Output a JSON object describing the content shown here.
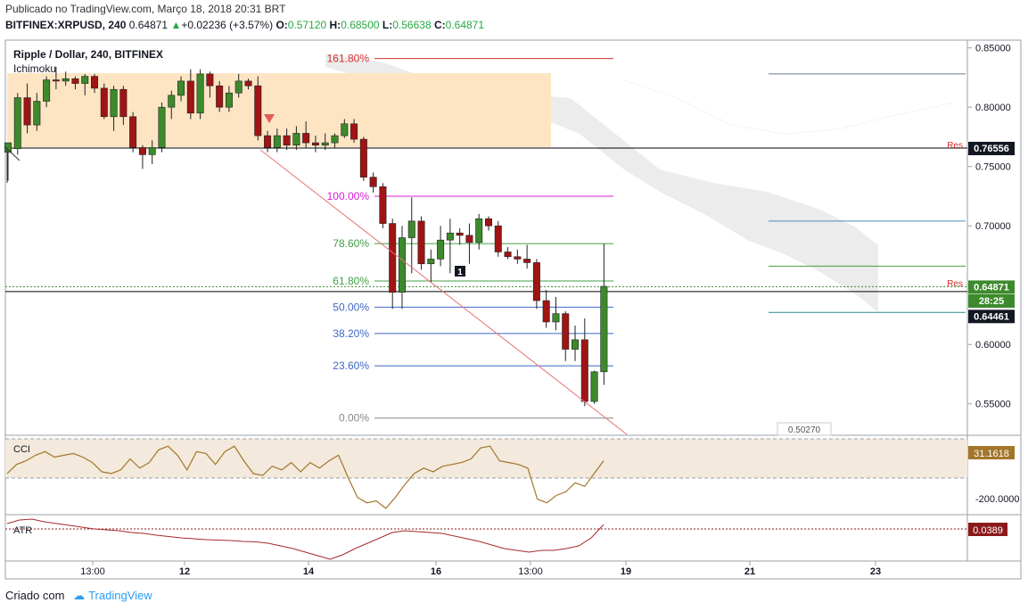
{
  "header": {
    "published": "Publicado no TradingView.com, Março 18, 2018 20:31 BRT",
    "symbol": "BITFINEX:XRPUSD, 240",
    "last": "0.64871",
    "change": "+0.02236 (+3.57%)",
    "o_label": "O:",
    "o": "0.57120",
    "h_label": "H:",
    "h": "0.68500",
    "l_label": "L:",
    "l": "0.56638",
    "c_label": "C:",
    "c": "0.64871"
  },
  "footer": {
    "created": "Criado com",
    "brand": "TradingView"
  },
  "colors": {
    "up": "#3d8a2c",
    "down": "#a01414",
    "zone": "#fde5c4",
    "cloud": "#e4e4e4"
  },
  "chart_data": {
    "type": "candlestick",
    "title": "Ripple / Dollar, 240, BITFINEX",
    "indicator_label": "Ichimoku",
    "y_axis": {
      "ticks": [
        "0.85000",
        "0.80000",
        "0.75000",
        "0.70000",
        "0.65000",
        "0.60000",
        "0.55000"
      ],
      "range": [
        0.525,
        0.855
      ]
    },
    "x_axis": {
      "ticks": [
        "13:00",
        "12",
        "14",
        "16",
        "13:00",
        "19",
        "21",
        "23"
      ]
    },
    "price_tags": [
      {
        "label": "0.76556",
        "value": 0.76556,
        "style": "dark"
      },
      {
        "label": "0.64871",
        "value": 0.64871,
        "style": "green"
      },
      {
        "label": "28:25",
        "value": 0.637,
        "style": "green"
      },
      {
        "label": "0.64461",
        "value": 0.624,
        "style": "dark"
      }
    ],
    "horizontal_lines": [
      {
        "value": 0.76556,
        "color": "#000000"
      },
      {
        "value": 0.64461,
        "color": "#000000"
      }
    ],
    "res_labels": [
      {
        "text": "Res",
        "value": 0.7669
      },
      {
        "text": "Res",
        "value": 0.6505
      }
    ],
    "fib_levels": [
      {
        "label": "161.80%",
        "value": 0.841,
        "color": "#d32f2f"
      },
      {
        "label": "100.00%",
        "value": 0.725,
        "color": "#d81fd8"
      },
      {
        "label": "78.60%",
        "value": 0.685,
        "color": "#43a047"
      },
      {
        "label": "61.80%",
        "value": 0.6535,
        "color": "#43a047"
      },
      {
        "label": "50.00%",
        "value": 0.6315,
        "color": "#3f66c8"
      },
      {
        "label": "38.20%",
        "value": 0.6093,
        "color": "#3f66c8"
      },
      {
        "label": "23.60%",
        "value": 0.582,
        "color": "#3f66c8"
      },
      {
        "label": "0.00%",
        "value": 0.538,
        "color": "#888888"
      }
    ],
    "right_lines": [
      {
        "value": 0.828,
        "color": "#6a7a88"
      },
      {
        "value": 0.704,
        "color": "#4a8fc0"
      },
      {
        "value": 0.666,
        "color": "#43a047"
      },
      {
        "value": 0.627,
        "color": "#2f8a8a"
      }
    ],
    "marker_price": "0.50270",
    "event_badge": "1",
    "candles": [
      {
        "o": 0.762,
        "h": 0.77,
        "l": 0.738,
        "c": 0.77
      },
      {
        "o": 0.765,
        "h": 0.812,
        "l": 0.76,
        "c": 0.808
      },
      {
        "o": 0.808,
        "h": 0.82,
        "l": 0.778,
        "c": 0.785
      },
      {
        "o": 0.785,
        "h": 0.812,
        "l": 0.78,
        "c": 0.805
      },
      {
        "o": 0.805,
        "h": 0.826,
        "l": 0.8,
        "c": 0.823
      },
      {
        "o": 0.823,
        "h": 0.834,
        "l": 0.815,
        "c": 0.822
      },
      {
        "o": 0.822,
        "h": 0.83,
        "l": 0.818,
        "c": 0.824
      },
      {
        "o": 0.824,
        "h": 0.826,
        "l": 0.815,
        "c": 0.82
      },
      {
        "o": 0.82,
        "h": 0.828,
        "l": 0.81,
        "c": 0.826
      },
      {
        "o": 0.826,
        "h": 0.828,
        "l": 0.812,
        "c": 0.816
      },
      {
        "o": 0.816,
        "h": 0.82,
        "l": 0.79,
        "c": 0.792
      },
      {
        "o": 0.792,
        "h": 0.818,
        "l": 0.78,
        "c": 0.815
      },
      {
        "o": 0.815,
        "h": 0.818,
        "l": 0.785,
        "c": 0.792
      },
      {
        "o": 0.792,
        "h": 0.796,
        "l": 0.762,
        "c": 0.766
      },
      {
        "o": 0.766,
        "h": 0.768,
        "l": 0.748,
        "c": 0.76
      },
      {
        "o": 0.76,
        "h": 0.772,
        "l": 0.752,
        "c": 0.766
      },
      {
        "o": 0.766,
        "h": 0.804,
        "l": 0.762,
        "c": 0.8
      },
      {
        "o": 0.8,
        "h": 0.814,
        "l": 0.79,
        "c": 0.81
      },
      {
        "o": 0.81,
        "h": 0.826,
        "l": 0.805,
        "c": 0.822
      },
      {
        "o": 0.822,
        "h": 0.832,
        "l": 0.79,
        "c": 0.795
      },
      {
        "o": 0.795,
        "h": 0.832,
        "l": 0.79,
        "c": 0.828
      },
      {
        "o": 0.828,
        "h": 0.83,
        "l": 0.808,
        "c": 0.818
      },
      {
        "o": 0.818,
        "h": 0.822,
        "l": 0.796,
        "c": 0.8
      },
      {
        "o": 0.8,
        "h": 0.818,
        "l": 0.796,
        "c": 0.812
      },
      {
        "o": 0.812,
        "h": 0.828,
        "l": 0.808,
        "c": 0.822
      },
      {
        "o": 0.822,
        "h": 0.824,
        "l": 0.815,
        "c": 0.818
      },
      {
        "o": 0.818,
        "h": 0.826,
        "l": 0.772,
        "c": 0.776
      },
      {
        "o": 0.776,
        "h": 0.78,
        "l": 0.762,
        "c": 0.766
      },
      {
        "o": 0.766,
        "h": 0.782,
        "l": 0.762,
        "c": 0.776
      },
      {
        "o": 0.776,
        "h": 0.782,
        "l": 0.764,
        "c": 0.768
      },
      {
        "o": 0.768,
        "h": 0.784,
        "l": 0.764,
        "c": 0.778
      },
      {
        "o": 0.778,
        "h": 0.788,
        "l": 0.766,
        "c": 0.77
      },
      {
        "o": 0.77,
        "h": 0.776,
        "l": 0.762,
        "c": 0.768
      },
      {
        "o": 0.768,
        "h": 0.778,
        "l": 0.764,
        "c": 0.77
      },
      {
        "o": 0.77,
        "h": 0.778,
        "l": 0.766,
        "c": 0.776
      },
      {
        "o": 0.776,
        "h": 0.79,
        "l": 0.774,
        "c": 0.786
      },
      {
        "o": 0.786,
        "h": 0.79,
        "l": 0.77,
        "c": 0.773
      },
      {
        "o": 0.773,
        "h": 0.775,
        "l": 0.738,
        "c": 0.741
      },
      {
        "o": 0.741,
        "h": 0.745,
        "l": 0.728,
        "c": 0.733
      },
      {
        "o": 0.733,
        "h": 0.736,
        "l": 0.698,
        "c": 0.702
      },
      {
        "o": 0.702,
        "h": 0.706,
        "l": 0.63,
        "c": 0.644
      },
      {
        "o": 0.644,
        "h": 0.7,
        "l": 0.63,
        "c": 0.69
      },
      {
        "o": 0.69,
        "h": 0.724,
        "l": 0.66,
        "c": 0.704
      },
      {
        "o": 0.704,
        "h": 0.708,
        "l": 0.663,
        "c": 0.668
      },
      {
        "o": 0.668,
        "h": 0.68,
        "l": 0.652,
        "c": 0.672
      },
      {
        "o": 0.672,
        "h": 0.7,
        "l": 0.666,
        "c": 0.688
      },
      {
        "o": 0.688,
        "h": 0.706,
        "l": 0.66,
        "c": 0.694
      },
      {
        "o": 0.694,
        "h": 0.698,
        "l": 0.684,
        "c": 0.692
      },
      {
        "o": 0.692,
        "h": 0.702,
        "l": 0.668,
        "c": 0.686
      },
      {
        "o": 0.686,
        "h": 0.71,
        "l": 0.68,
        "c": 0.706
      },
      {
        "o": 0.706,
        "h": 0.708,
        "l": 0.696,
        "c": 0.7
      },
      {
        "o": 0.7,
        "h": 0.704,
        "l": 0.674,
        "c": 0.678
      },
      {
        "o": 0.678,
        "h": 0.682,
        "l": 0.672,
        "c": 0.674
      },
      {
        "o": 0.674,
        "h": 0.68,
        "l": 0.668,
        "c": 0.672
      },
      {
        "o": 0.672,
        "h": 0.684,
        "l": 0.664,
        "c": 0.669
      },
      {
        "o": 0.669,
        "h": 0.672,
        "l": 0.63,
        "c": 0.637
      },
      {
        "o": 0.637,
        "h": 0.646,
        "l": 0.614,
        "c": 0.619
      },
      {
        "o": 0.619,
        "h": 0.64,
        "l": 0.612,
        "c": 0.626
      },
      {
        "o": 0.626,
        "h": 0.628,
        "l": 0.586,
        "c": 0.596
      },
      {
        "o": 0.596,
        "h": 0.616,
        "l": 0.586,
        "c": 0.604
      },
      {
        "o": 0.604,
        "h": 0.622,
        "l": 0.548,
        "c": 0.552
      },
      {
        "o": 0.552,
        "h": 0.578,
        "l": 0.55,
        "c": 0.577
      },
      {
        "o": 0.577,
        "h": 0.685,
        "l": 0.566,
        "c": 0.649
      }
    ],
    "cci": {
      "label": "CCI",
      "tag": "31.1618",
      "scale_label": "-200.0000",
      "values": [
        -40,
        10,
        30,
        60,
        80,
        50,
        60,
        70,
        50,
        20,
        -30,
        -40,
        -20,
        40,
        -10,
        20,
        90,
        110,
        60,
        -20,
        80,
        70,
        10,
        80,
        110,
        30,
        -40,
        -50,
        0,
        -20,
        20,
        -30,
        20,
        -10,
        30,
        60,
        -60,
        -170,
        -200,
        -190,
        -230,
        -170,
        -100,
        -40,
        -10,
        -30,
        0,
        10,
        20,
        40,
        100,
        110,
        30,
        20,
        10,
        -10,
        -180,
        -200,
        -160,
        -140,
        -90,
        -110,
        -40,
        30
      ],
      "range": [
        -260,
        150
      ]
    },
    "atr": {
      "label": "ATR",
      "tag": "0.0389",
      "values": [
        0.04,
        0.044,
        0.045,
        0.042,
        0.04,
        0.038,
        0.036,
        0.034,
        0.033,
        0.032,
        0.03,
        0.029,
        0.027,
        0.0255,
        0.024,
        0.023,
        0.022,
        0.0215,
        0.021,
        0.02,
        0.0195,
        0.018,
        0.015,
        0.012,
        0.008,
        0.004,
        0.0,
        0.005,
        0.012,
        0.018,
        0.024,
        0.03,
        0.032,
        0.031,
        0.03,
        0.029,
        0.026,
        0.023,
        0.02,
        0.016,
        0.012,
        0.01,
        0.008,
        0.01,
        0.01,
        0.012,
        0.015,
        0.024,
        0.0389
      ],
      "range": [
        0.0,
        0.048
      ]
    }
  }
}
